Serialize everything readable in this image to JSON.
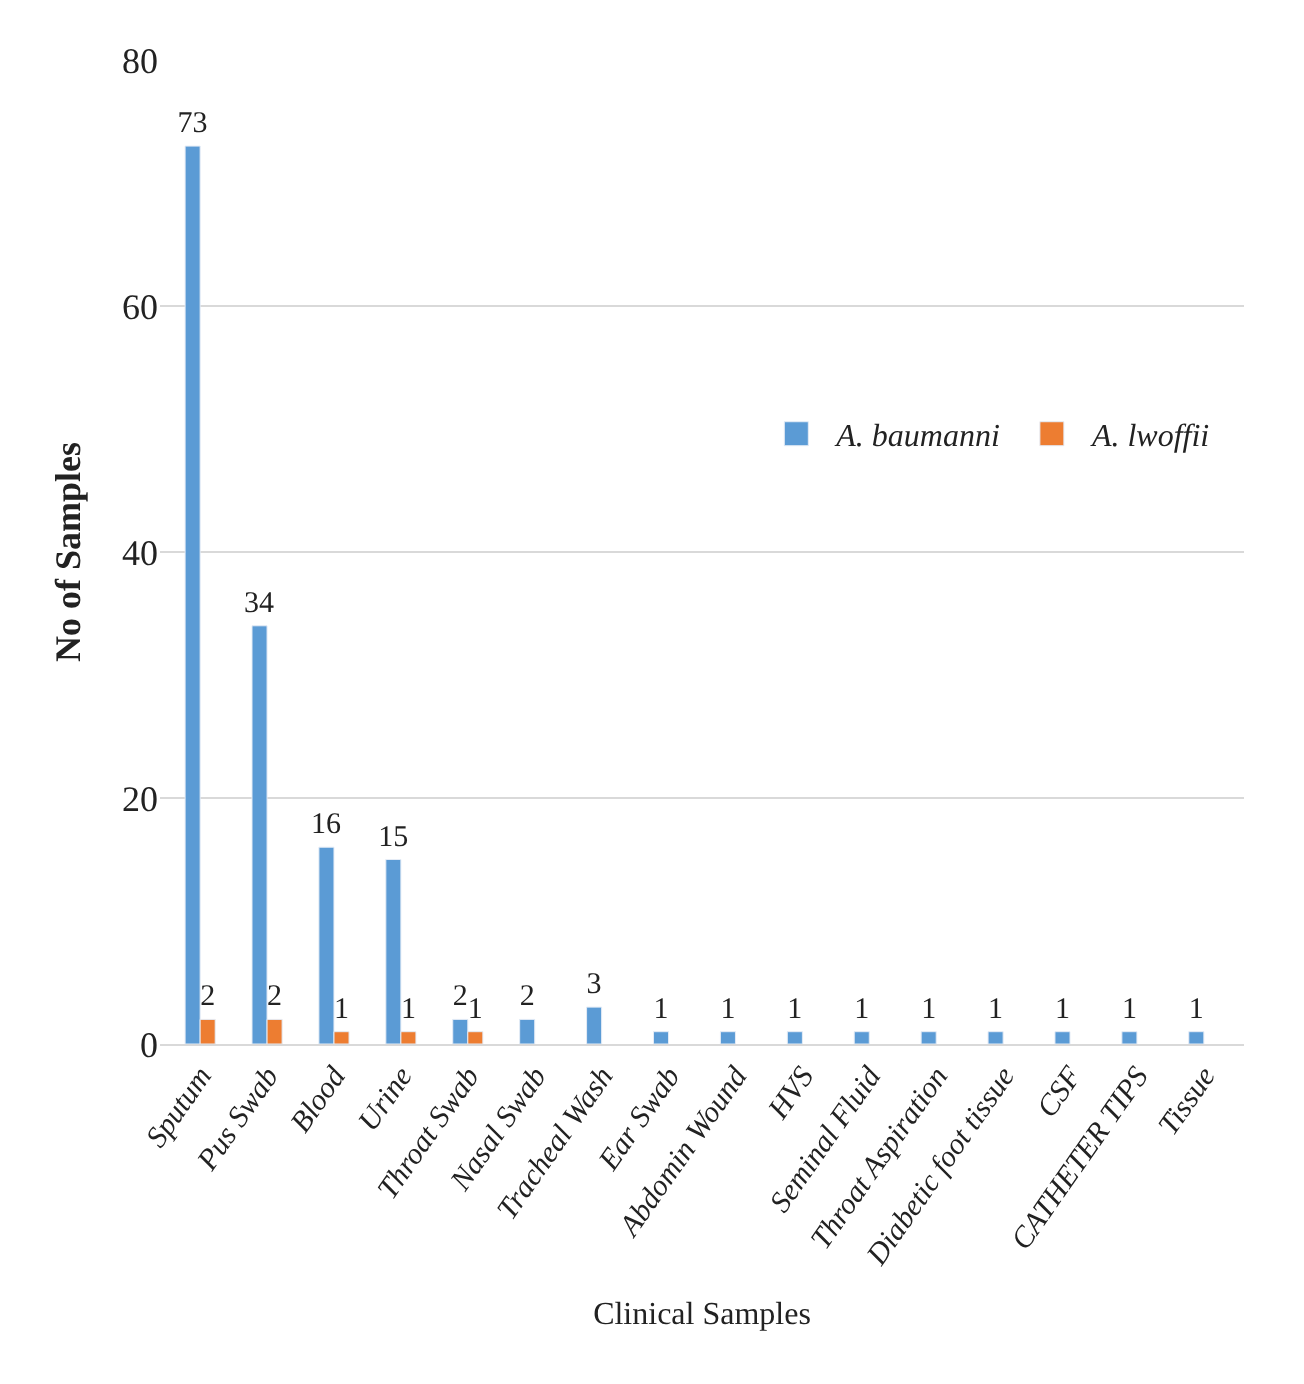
{
  "chart_data": {
    "type": "bar",
    "xlabel": "Clinical Samples",
    "ylabel": "No of Samples",
    "categories": [
      "Sputum",
      "Pus Swab",
      "Blood",
      "Urine",
      "Throat Swab",
      "Nasal Swab",
      "Tracheal Wash",
      "Ear Swab",
      "Abdomin Wound",
      "HVS",
      "Seminal Fluid",
      "Throat Aspiration",
      "Diabetic foot tissue",
      "CSF",
      "CATHETER TIPS",
      "Tissue"
    ],
    "series": [
      {
        "name": "A. baumanni",
        "color": "#5b9bd5",
        "values": [
          73,
          34,
          16,
          15,
          2,
          2,
          3,
          1,
          1,
          1,
          1,
          1,
          1,
          1,
          1,
          1
        ]
      },
      {
        "name": "A. lwoffii",
        "color": "#ed7d31",
        "values": [
          2,
          2,
          1,
          1,
          1,
          null,
          null,
          null,
          null,
          null,
          null,
          null,
          null,
          null,
          null,
          null
        ]
      }
    ],
    "ylim": [
      0,
      80
    ],
    "yticks": [
      0,
      20,
      40,
      60,
      80
    ],
    "grid": "y",
    "legend": "right",
    "data_labels": true
  }
}
